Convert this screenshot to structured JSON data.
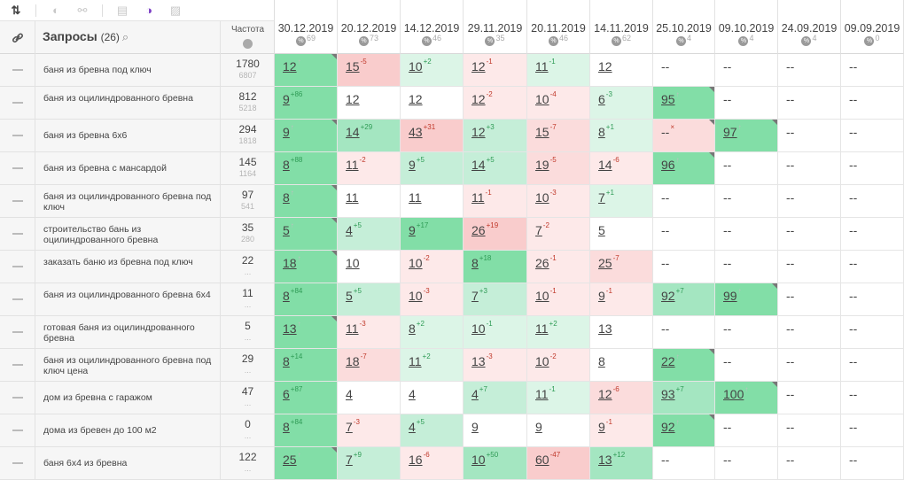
{
  "toolbar": {
    "sort_icon": "sort-arrows-icon",
    "items": [
      "toggle-icon",
      "link-icon",
      "document-icon",
      "contrast-icon",
      "image-icon"
    ]
  },
  "header": {
    "queries_title": "Запросы",
    "queries_count": "(26)",
    "frequency_title": "Частота"
  },
  "dates": [
    {
      "date": "30.12.2019",
      "count": "69"
    },
    {
      "date": "20.12.2019",
      "count": "73"
    },
    {
      "date": "14.12.2019",
      "count": "46"
    },
    {
      "date": "29.11.2019",
      "count": "35"
    },
    {
      "date": "20.11.2019",
      "count": "46"
    },
    {
      "date": "14.11.2019",
      "count": "62"
    },
    {
      "date": "25.10.2019",
      "count": "4"
    },
    {
      "date": "09.10.2019",
      "count": "4"
    },
    {
      "date": "24.09.2019",
      "count": "4"
    },
    {
      "date": "09.09.2019",
      "count": "0"
    }
  ],
  "rows": [
    {
      "query": "баня из бревна под ключ",
      "freq": "1780",
      "freq_exact": "6807",
      "cells": [
        {
          "v": "12",
          "c": "↑",
          "t": "up",
          "bg": "g1",
          "tri": true
        },
        {
          "v": "15",
          "c": "-5",
          "t": "neg",
          "bg": "r1"
        },
        {
          "v": "10",
          "c": "+2",
          "t": "pos",
          "bg": "g4"
        },
        {
          "v": "12",
          "c": "-1",
          "t": "neg",
          "bg": "r3"
        },
        {
          "v": "11",
          "c": "-1",
          "t": "pos",
          "bg": "g4"
        },
        {
          "v": "12",
          "c": "",
          "t": "",
          "bg": "w"
        },
        {
          "v": "--",
          "c": "",
          "t": "",
          "bg": "w"
        },
        {
          "v": "--",
          "c": "",
          "t": "",
          "bg": "w"
        },
        {
          "v": "--",
          "c": "",
          "t": "",
          "bg": "w"
        },
        {
          "v": "--",
          "c": "",
          "t": "",
          "bg": "w"
        }
      ]
    },
    {
      "query": "баня из оцилиндрованного бревна",
      "freq": "812",
      "freq_exact": "5218",
      "cells": [
        {
          "v": "9",
          "c": "+86",
          "t": "pos",
          "bg": "g1"
        },
        {
          "v": "12",
          "c": "",
          "t": "",
          "bg": "w"
        },
        {
          "v": "12",
          "c": "",
          "t": "",
          "bg": "w"
        },
        {
          "v": "12",
          "c": "-2",
          "t": "neg",
          "bg": "r3"
        },
        {
          "v": "10",
          "c": "-4",
          "t": "neg",
          "bg": "r3"
        },
        {
          "v": "6",
          "c": "-3",
          "t": "pos",
          "bg": "g4"
        },
        {
          "v": "95",
          "c": "↑",
          "t": "up",
          "bg": "g1",
          "tri": true
        },
        {
          "v": "--",
          "c": "",
          "t": "",
          "bg": "w"
        },
        {
          "v": "--",
          "c": "",
          "t": "",
          "bg": "w"
        },
        {
          "v": "--",
          "c": "",
          "t": "",
          "bg": "w"
        }
      ]
    },
    {
      "query": "баня из бревна 6х6",
      "freq": "294",
      "freq_exact": "1818",
      "cells": [
        {
          "v": "9",
          "c": "↑",
          "t": "up",
          "bg": "g1",
          "tri": true
        },
        {
          "v": "14",
          "c": "+29",
          "t": "pos",
          "bg": "g2"
        },
        {
          "v": "43",
          "c": "+31",
          "t": "neg",
          "bg": "r1"
        },
        {
          "v": "12",
          "c": "+3",
          "t": "pos",
          "bg": "g3"
        },
        {
          "v": "15",
          "c": "-7",
          "t": "neg",
          "bg": "r2"
        },
        {
          "v": "8",
          "c": "+1",
          "t": "pos",
          "bg": "g4"
        },
        {
          "v": "--",
          "c": "×",
          "t": "neg",
          "bg": "r2",
          "tri": true
        },
        {
          "v": "97",
          "c": "↑",
          "t": "up",
          "bg": "g1",
          "tri": true
        },
        {
          "v": "--",
          "c": "",
          "t": "",
          "bg": "w"
        },
        {
          "v": "--",
          "c": "",
          "t": "",
          "bg": "w"
        }
      ]
    },
    {
      "query": "баня из бревна с мансардой",
      "freq": "145",
      "freq_exact": "1164",
      "cells": [
        {
          "v": "8",
          "c": "+88",
          "t": "pos",
          "bg": "g1"
        },
        {
          "v": "11",
          "c": "-2",
          "t": "neg",
          "bg": "r3"
        },
        {
          "v": "9",
          "c": "+5",
          "t": "pos",
          "bg": "g3"
        },
        {
          "v": "14",
          "c": "+5",
          "t": "pos",
          "bg": "g3"
        },
        {
          "v": "19",
          "c": "-5",
          "t": "neg",
          "bg": "r2"
        },
        {
          "v": "14",
          "c": "-6",
          "t": "neg",
          "bg": "r3"
        },
        {
          "v": "96",
          "c": "↑",
          "t": "up",
          "bg": "g1",
          "tri": true
        },
        {
          "v": "--",
          "c": "",
          "t": "",
          "bg": "w"
        },
        {
          "v": "--",
          "c": "",
          "t": "",
          "bg": "w"
        },
        {
          "v": "--",
          "c": "",
          "t": "",
          "bg": "w"
        }
      ]
    },
    {
      "query": "баня из оцилиндрованного бревна под ключ",
      "freq": "97",
      "freq_exact": "541",
      "cells": [
        {
          "v": "8",
          "c": "↑",
          "t": "up",
          "bg": "g1",
          "tri": true
        },
        {
          "v": "11",
          "c": "",
          "t": "",
          "bg": "w"
        },
        {
          "v": "11",
          "c": "",
          "t": "",
          "bg": "w"
        },
        {
          "v": "11",
          "c": "-1",
          "t": "neg",
          "bg": "r3"
        },
        {
          "v": "10",
          "c": "-3",
          "t": "neg",
          "bg": "r3"
        },
        {
          "v": "7",
          "c": "+1",
          "t": "pos",
          "bg": "g4"
        },
        {
          "v": "--",
          "c": "",
          "t": "",
          "bg": "w"
        },
        {
          "v": "--",
          "c": "",
          "t": "",
          "bg": "w"
        },
        {
          "v": "--",
          "c": "",
          "t": "",
          "bg": "w"
        },
        {
          "v": "--",
          "c": "",
          "t": "",
          "bg": "w"
        }
      ]
    },
    {
      "query": "строительство бань из оцилиндрованного бревна",
      "freq": "35",
      "freq_exact": "280",
      "cells": [
        {
          "v": "5",
          "c": "↑",
          "t": "up",
          "bg": "g1",
          "tri": true
        },
        {
          "v": "4",
          "c": "+5",
          "t": "pos",
          "bg": "g3"
        },
        {
          "v": "9",
          "c": "+17",
          "t": "pos",
          "bg": "g1"
        },
        {
          "v": "26",
          "c": "+19",
          "t": "neg",
          "bg": "r1"
        },
        {
          "v": "7",
          "c": "-2",
          "t": "neg",
          "bg": "r3"
        },
        {
          "v": "5",
          "c": "",
          "t": "",
          "bg": "w"
        },
        {
          "v": "--",
          "c": "",
          "t": "",
          "bg": "w"
        },
        {
          "v": "--",
          "c": "",
          "t": "",
          "bg": "w"
        },
        {
          "v": "--",
          "c": "",
          "t": "",
          "bg": "w"
        },
        {
          "v": "--",
          "c": "",
          "t": "",
          "bg": "w"
        }
      ]
    },
    {
      "query": "заказать баню из бревна под ключ",
      "freq": "22",
      "freq_exact": "",
      "cells": [
        {
          "v": "18",
          "c": "↑",
          "t": "up",
          "bg": "g1",
          "tri": true
        },
        {
          "v": "10",
          "c": "",
          "t": "",
          "bg": "w"
        },
        {
          "v": "10",
          "c": "-2",
          "t": "neg",
          "bg": "r3"
        },
        {
          "v": "8",
          "c": "+18",
          "t": "pos",
          "bg": "g1"
        },
        {
          "v": "26",
          "c": "-1",
          "t": "neg",
          "bg": "r3"
        },
        {
          "v": "25",
          "c": "-7",
          "t": "neg",
          "bg": "r2"
        },
        {
          "v": "--",
          "c": "",
          "t": "",
          "bg": "w"
        },
        {
          "v": "--",
          "c": "",
          "t": "",
          "bg": "w"
        },
        {
          "v": "--",
          "c": "",
          "t": "",
          "bg": "w"
        },
        {
          "v": "--",
          "c": "",
          "t": "",
          "bg": "w"
        }
      ]
    },
    {
      "query": "баня из оцилиндрованного бревна 6х4",
      "freq": "11",
      "freq_exact": "",
      "cells": [
        {
          "v": "8",
          "c": "+84",
          "t": "pos",
          "bg": "g1"
        },
        {
          "v": "5",
          "c": "+5",
          "t": "pos",
          "bg": "g3"
        },
        {
          "v": "10",
          "c": "-3",
          "t": "neg",
          "bg": "r3"
        },
        {
          "v": "7",
          "c": "+3",
          "t": "pos",
          "bg": "g3"
        },
        {
          "v": "10",
          "c": "-1",
          "t": "neg",
          "bg": "r3"
        },
        {
          "v": "9",
          "c": "-1",
          "t": "neg",
          "bg": "r3"
        },
        {
          "v": "92",
          "c": "+7",
          "t": "pos",
          "bg": "g2"
        },
        {
          "v": "99",
          "c": "↑",
          "t": "up",
          "bg": "g1",
          "tri": true
        },
        {
          "v": "--",
          "c": "",
          "t": "",
          "bg": "w"
        },
        {
          "v": "--",
          "c": "",
          "t": "",
          "bg": "w"
        }
      ]
    },
    {
      "query": "готовая баня из оцилиндрованного бревна",
      "freq": "5",
      "freq_exact": "",
      "cells": [
        {
          "v": "13",
          "c": "↑",
          "t": "up",
          "bg": "g1",
          "tri": true
        },
        {
          "v": "11",
          "c": "-3",
          "t": "neg",
          "bg": "r3"
        },
        {
          "v": "8",
          "c": "+2",
          "t": "pos",
          "bg": "g4"
        },
        {
          "v": "10",
          "c": "-1",
          "t": "pos",
          "bg": "g4"
        },
        {
          "v": "11",
          "c": "+2",
          "t": "pos",
          "bg": "g4"
        },
        {
          "v": "13",
          "c": "",
          "t": "",
          "bg": "w"
        },
        {
          "v": "--",
          "c": "",
          "t": "",
          "bg": "w"
        },
        {
          "v": "--",
          "c": "",
          "t": "",
          "bg": "w"
        },
        {
          "v": "--",
          "c": "",
          "t": "",
          "bg": "w"
        },
        {
          "v": "--",
          "c": "",
          "t": "",
          "bg": "w"
        }
      ]
    },
    {
      "query": "баня из оцилиндрованного бревна под ключ цена",
      "freq": "29",
      "freq_exact": "",
      "cells": [
        {
          "v": "8",
          "c": "+14",
          "t": "pos",
          "bg": "g1"
        },
        {
          "v": "18",
          "c": "-7",
          "t": "neg",
          "bg": "r2"
        },
        {
          "v": "11",
          "c": "+2",
          "t": "pos",
          "bg": "g4"
        },
        {
          "v": "13",
          "c": "-3",
          "t": "neg",
          "bg": "r3"
        },
        {
          "v": "10",
          "c": "-2",
          "t": "neg",
          "bg": "r3"
        },
        {
          "v": "8",
          "c": "",
          "t": "",
          "bg": "w"
        },
        {
          "v": "22",
          "c": "↑",
          "t": "up",
          "bg": "g1",
          "tri": true
        },
        {
          "v": "--",
          "c": "",
          "t": "",
          "bg": "w"
        },
        {
          "v": "--",
          "c": "",
          "t": "",
          "bg": "w"
        },
        {
          "v": "--",
          "c": "",
          "t": "",
          "bg": "w"
        }
      ]
    },
    {
      "query": "дом из бревна с гаражом",
      "freq": "47",
      "freq_exact": "",
      "cells": [
        {
          "v": "6",
          "c": "+87",
          "t": "pos",
          "bg": "g1"
        },
        {
          "v": "4",
          "c": "",
          "t": "",
          "bg": "w"
        },
        {
          "v": "4",
          "c": "",
          "t": "",
          "bg": "w"
        },
        {
          "v": "4",
          "c": "+7",
          "t": "pos",
          "bg": "g3"
        },
        {
          "v": "11",
          "c": "-1",
          "t": "pos",
          "bg": "g4"
        },
        {
          "v": "12",
          "c": "-6",
          "t": "neg",
          "bg": "r2"
        },
        {
          "v": "93",
          "c": "+7",
          "t": "pos",
          "bg": "g2"
        },
        {
          "v": "100",
          "c": "↑",
          "t": "up",
          "bg": "g1",
          "tri": true
        },
        {
          "v": "--",
          "c": "",
          "t": "",
          "bg": "w"
        },
        {
          "v": "--",
          "c": "",
          "t": "",
          "bg": "w"
        }
      ]
    },
    {
      "query": "дома из бревен до 100 м2",
      "freq": "0",
      "freq_exact": "",
      "cells": [
        {
          "v": "8",
          "c": "+84",
          "t": "pos",
          "bg": "g1"
        },
        {
          "v": "7",
          "c": "-3",
          "t": "neg",
          "bg": "r3"
        },
        {
          "v": "4",
          "c": "+5",
          "t": "pos",
          "bg": "g3"
        },
        {
          "v": "9",
          "c": "",
          "t": "",
          "bg": "w"
        },
        {
          "v": "9",
          "c": "",
          "t": "",
          "bg": "w"
        },
        {
          "v": "9",
          "c": "-1",
          "t": "neg",
          "bg": "r3"
        },
        {
          "v": "92",
          "c": "↑",
          "t": "up",
          "bg": "g1",
          "tri": true
        },
        {
          "v": "--",
          "c": "",
          "t": "",
          "bg": "w"
        },
        {
          "v": "--",
          "c": "",
          "t": "",
          "bg": "w"
        },
        {
          "v": "--",
          "c": "",
          "t": "",
          "bg": "w"
        }
      ]
    },
    {
      "query": "баня 6х4 из бревна",
      "freq": "122",
      "freq_exact": "",
      "cells": [
        {
          "v": "25",
          "c": "↑",
          "t": "up",
          "bg": "g1",
          "tri": true
        },
        {
          "v": "7",
          "c": "+9",
          "t": "pos",
          "bg": "g3"
        },
        {
          "v": "16",
          "c": "-6",
          "t": "neg",
          "bg": "r3"
        },
        {
          "v": "10",
          "c": "+50",
          "t": "pos",
          "bg": "g2"
        },
        {
          "v": "60",
          "c": "-47",
          "t": "neg",
          "bg": "r1"
        },
        {
          "v": "13",
          "c": "+12",
          "t": "pos",
          "bg": "g2"
        },
        {
          "v": "--",
          "c": "",
          "t": "",
          "bg": "w"
        },
        {
          "v": "--",
          "c": "",
          "t": "",
          "bg": "w"
        },
        {
          "v": "--",
          "c": "",
          "t": "",
          "bg": "w"
        },
        {
          "v": "--",
          "c": "",
          "t": "",
          "bg": "w"
        }
      ]
    }
  ]
}
